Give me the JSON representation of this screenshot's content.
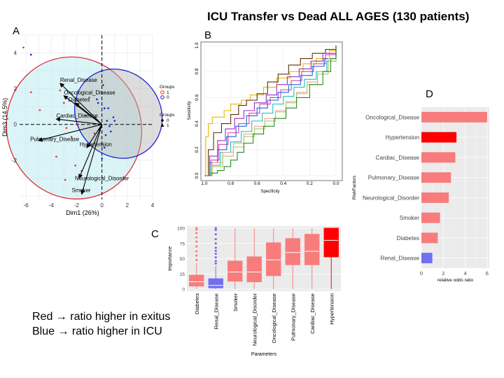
{
  "title": "ICU Transfer vs Dead ALL AGES (130 patients)",
  "panel_labels": {
    "a": "A",
    "b": "B",
    "c": "C",
    "d": "D"
  },
  "notes": [
    "Red → ratio higher in exitus",
    "Blue → ratio higher in ICU"
  ],
  "colors": {
    "red": "#ff0000",
    "light_red": "#f87c7c",
    "blue": "#7070f0",
    "dark_blue": "#2020d0"
  },
  "chart_data": [
    {
      "type": "scatter",
      "panel": "A",
      "xlabel": "Dim1 (26%)",
      "ylabel": "Dim3 (14.5%)",
      "xlim": [
        -6.5,
        4
      ],
      "ylim": [
        -4.2,
        5
      ],
      "xticks": [
        "-6",
        "-4",
        "-2",
        "0",
        "2",
        "4"
      ],
      "yticks": [
        "-2",
        "0",
        "2",
        "4"
      ],
      "grid": true,
      "legend": {
        "position": "right",
        "sections": [
          {
            "title": "Groups",
            "items": [
              "1",
              "0"
            ]
          },
          {
            "title": "Groups",
            "items": [
              "0",
              "1"
            ]
          }
        ]
      },
      "variables": [
        {
          "name": "Renal_Disease",
          "x": -3.3,
          "y": 2.3
        },
        {
          "name": "Oncological_Disease",
          "x": -3.0,
          "y": 1.6
        },
        {
          "name": "Diabetes",
          "x": -2.1,
          "y": 1.2
        },
        {
          "name": "Cardiac_Disease",
          "x": -3.6,
          "y": 0.3
        },
        {
          "name": "Hypertension",
          "x": -1.2,
          "y": -1.3
        },
        {
          "name": "Pulmonary_Disease",
          "x": -5.0,
          "y": -0.9
        },
        {
          "name": "Neurological_Disorder",
          "x": -1.8,
          "y": -3.0
        },
        {
          "name": "Smoker",
          "x": -1.6,
          "y": -3.9
        }
      ],
      "ellipses": [
        {
          "group": "1",
          "cx": -2.2,
          "cy": -0.2,
          "rx": 5.3,
          "ry": 4.0,
          "rotate": -20
        },
        {
          "group": "0",
          "cx": 1.3,
          "cy": 0.6,
          "rx": 3.3,
          "ry": 2.6,
          "rotate": -40
        }
      ],
      "points_group1": [
        [
          -6.2,
          4.3
        ],
        [
          -5.6,
          1.8
        ],
        [
          -4.9,
          0.8
        ],
        [
          -3.3,
          1.9
        ],
        [
          -3.0,
          1.2
        ],
        [
          -2.8,
          -0.2
        ],
        [
          -2.4,
          -0.7
        ],
        [
          -2.1,
          -2.3
        ],
        [
          -1.6,
          -2.6
        ],
        [
          -2.9,
          -3.1
        ],
        [
          -1.3,
          0.5
        ],
        [
          -0.8,
          -1.2
        ],
        [
          -0.5,
          0.4
        ],
        [
          -1.0,
          1.5
        ],
        [
          -3.6,
          -1.8
        ],
        [
          -2.0,
          0.0
        ],
        [
          -0.6,
          -0.5
        ],
        [
          -1.8,
          1.0
        ]
      ],
      "points_group0": [
        [
          -5.6,
          3.9
        ],
        [
          -0.4,
          1.4
        ],
        [
          0.2,
          0.9
        ],
        [
          0.4,
          0.2
        ],
        [
          0.6,
          -0.1
        ],
        [
          0.3,
          -0.6
        ],
        [
          0.9,
          0.4
        ],
        [
          0.1,
          2.2
        ],
        [
          0.2,
          -1.3
        ],
        [
          0.5,
          0.9
        ],
        [
          -0.2,
          -0.3
        ],
        [
          0.7,
          -0.4
        ],
        [
          -0.3,
          1.2
        ],
        [
          1.0,
          0.2
        ],
        [
          0.0,
          -1.9
        ]
      ]
    },
    {
      "type": "line",
      "panel": "B",
      "xlabel": "Specificity",
      "ylabel": "Sensitivity",
      "xlim": [
        1.0,
        0.0
      ],
      "ylim": [
        0.0,
        1.0
      ],
      "xticks": [
        "1.0",
        "0.8",
        "0.6",
        "0.4",
        "0.2",
        "0.0"
      ],
      "yticks": [
        "0.0",
        "0.2",
        "0.4",
        "0.6",
        "0.8",
        "1.0"
      ],
      "grid": true,
      "series": [
        {
          "color": "#e8b800",
          "points": [
            [
              1.0,
              0.0
            ],
            [
              0.99,
              0.3
            ],
            [
              0.97,
              0.4
            ],
            [
              0.94,
              0.45
            ],
            [
              0.9,
              0.45
            ],
            [
              0.85,
              0.5
            ],
            [
              0.8,
              0.55
            ],
            [
              0.72,
              0.58
            ],
            [
              0.65,
              0.62
            ],
            [
              0.55,
              0.68
            ],
            [
              0.45,
              0.75
            ],
            [
              0.35,
              0.8
            ],
            [
              0.25,
              0.86
            ],
            [
              0.15,
              0.9
            ],
            [
              0.05,
              0.96
            ],
            [
              0.0,
              1.0
            ]
          ]
        },
        {
          "color": "#5a3010",
          "points": [
            [
              1.0,
              0.0
            ],
            [
              0.97,
              0.2
            ],
            [
              0.93,
              0.33
            ],
            [
              0.87,
              0.4
            ],
            [
              0.8,
              0.47
            ],
            [
              0.74,
              0.54
            ],
            [
              0.68,
              0.58
            ],
            [
              0.6,
              0.63
            ],
            [
              0.52,
              0.72
            ],
            [
              0.44,
              0.78
            ],
            [
              0.36,
              0.85
            ],
            [
              0.27,
              0.9
            ],
            [
              0.18,
              0.94
            ],
            [
              0.08,
              0.97
            ],
            [
              0.0,
              1.0
            ]
          ]
        },
        {
          "color": "#9a30c0",
          "points": [
            [
              1.0,
              0.0
            ],
            [
              0.96,
              0.15
            ],
            [
              0.9,
              0.27
            ],
            [
              0.84,
              0.36
            ],
            [
              0.77,
              0.44
            ],
            [
              0.7,
              0.5
            ],
            [
              0.62,
              0.56
            ],
            [
              0.53,
              0.62
            ],
            [
              0.45,
              0.7
            ],
            [
              0.37,
              0.76
            ],
            [
              0.28,
              0.82
            ],
            [
              0.19,
              0.88
            ],
            [
              0.1,
              0.94
            ],
            [
              0.0,
              1.0
            ]
          ]
        },
        {
          "color": "#e040a0",
          "points": [
            [
              1.0,
              0.0
            ],
            [
              0.95,
              0.12
            ],
            [
              0.89,
              0.24
            ],
            [
              0.82,
              0.33
            ],
            [
              0.74,
              0.4
            ],
            [
              0.66,
              0.48
            ],
            [
              0.58,
              0.55
            ],
            [
              0.5,
              0.6
            ],
            [
              0.42,
              0.66
            ],
            [
              0.34,
              0.73
            ],
            [
              0.26,
              0.8
            ],
            [
              0.17,
              0.86
            ],
            [
              0.08,
              0.93
            ],
            [
              0.0,
              1.0
            ]
          ]
        },
        {
          "color": "#2060e0",
          "points": [
            [
              1.0,
              0.0
            ],
            [
              0.96,
              0.1
            ],
            [
              0.9,
              0.2
            ],
            [
              0.83,
              0.3
            ],
            [
              0.76,
              0.38
            ],
            [
              0.68,
              0.46
            ],
            [
              0.6,
              0.52
            ],
            [
              0.52,
              0.58
            ],
            [
              0.44,
              0.64
            ],
            [
              0.36,
              0.7
            ],
            [
              0.27,
              0.77
            ],
            [
              0.18,
              0.84
            ],
            [
              0.09,
              0.9
            ],
            [
              0.0,
              1.0
            ]
          ]
        },
        {
          "color": "#20c0c0",
          "points": [
            [
              1.0,
              0.0
            ],
            [
              0.95,
              0.08
            ],
            [
              0.88,
              0.18
            ],
            [
              0.8,
              0.26
            ],
            [
              0.72,
              0.34
            ],
            [
              0.64,
              0.42
            ],
            [
              0.56,
              0.48
            ],
            [
              0.48,
              0.55
            ],
            [
              0.4,
              0.61
            ],
            [
              0.32,
              0.68
            ],
            [
              0.24,
              0.74
            ],
            [
              0.15,
              0.8
            ],
            [
              0.07,
              0.88
            ],
            [
              0.0,
              1.0
            ]
          ]
        },
        {
          "color": "#f0a0a0",
          "points": [
            [
              1.0,
              0.0
            ],
            [
              0.94,
              0.1
            ],
            [
              0.86,
              0.18
            ],
            [
              0.78,
              0.25
            ],
            [
              0.7,
              0.32
            ],
            [
              0.62,
              0.38
            ],
            [
              0.54,
              0.44
            ],
            [
              0.46,
              0.5
            ],
            [
              0.38,
              0.57
            ],
            [
              0.3,
              0.64
            ],
            [
              0.22,
              0.72
            ],
            [
              0.14,
              0.8
            ],
            [
              0.06,
              0.9
            ],
            [
              0.0,
              1.0
            ]
          ]
        },
        {
          "color": "#a0d060",
          "points": [
            [
              1.0,
              0.0
            ],
            [
              0.94,
              0.07
            ],
            [
              0.86,
              0.15
            ],
            [
              0.78,
              0.22
            ],
            [
              0.7,
              0.3
            ],
            [
              0.62,
              0.36
            ],
            [
              0.54,
              0.42
            ],
            [
              0.46,
              0.49
            ],
            [
              0.38,
              0.56
            ],
            [
              0.3,
              0.63
            ],
            [
              0.22,
              0.7
            ],
            [
              0.14,
              0.78
            ],
            [
              0.06,
              0.88
            ],
            [
              0.0,
              1.0
            ]
          ]
        },
        {
          "color": "#2a8a20",
          "points": [
            [
              1.0,
              0.0
            ],
            [
              0.95,
              0.02
            ],
            [
              0.9,
              0.04
            ],
            [
              0.85,
              0.07
            ],
            [
              0.8,
              0.12
            ],
            [
              0.75,
              0.18
            ],
            [
              0.7,
              0.25
            ],
            [
              0.63,
              0.32
            ],
            [
              0.55,
              0.38
            ],
            [
              0.47,
              0.44
            ],
            [
              0.38,
              0.52
            ],
            [
              0.3,
              0.6
            ],
            [
              0.2,
              0.7
            ],
            [
              0.1,
              0.8
            ],
            [
              0.04,
              0.9
            ],
            [
              0.0,
              1.0
            ]
          ]
        }
      ]
    },
    {
      "type": "box",
      "panel": "C",
      "xlabel": "Parameters",
      "ylabel": "Importance",
      "ylim": [
        0,
        100
      ],
      "yticks": [
        "0",
        "25",
        "50",
        "75",
        "100"
      ],
      "grid": true,
      "categories": [
        "Diabetes",
        "Renal_Disease",
        "Smoker",
        "Neurological_Disorder",
        "Oncological_Disease",
        "Pulmonary_Disease",
        "Cardiac_Disease",
        "Hypertension"
      ],
      "boxes": [
        {
          "name": "Diabetes",
          "min": 0,
          "q1": 5,
          "median": 12,
          "q3": 23,
          "max": 43,
          "color": "light_red",
          "outliers": [
            48,
            55,
            62,
            70,
            78,
            85,
            92,
            98,
            100
          ]
        },
        {
          "name": "Renal_Disease",
          "min": 0,
          "q1": 2,
          "median": 6,
          "q3": 17,
          "max": 38,
          "color": "blue",
          "outliers": [
            42,
            46,
            52,
            58,
            63,
            68,
            75,
            82,
            90,
            97,
            100
          ]
        },
        {
          "name": "Smoker",
          "min": 0,
          "q1": 13,
          "median": 28,
          "q3": 46,
          "max": 100,
          "color": "light_red",
          "outliers": []
        },
        {
          "name": "Neurological_Disorder",
          "min": 0,
          "q1": 12,
          "median": 28,
          "q3": 53,
          "max": 100,
          "color": "light_red",
          "outliers": []
        },
        {
          "name": "Oncological_Disease",
          "min": 0,
          "q1": 22,
          "median": 48,
          "q3": 76,
          "max": 100,
          "color": "light_red",
          "outliers": []
        },
        {
          "name": "Pulmonary_Disease",
          "min": 0,
          "q1": 40,
          "median": 60,
          "q3": 83,
          "max": 100,
          "color": "light_red",
          "outliers": []
        },
        {
          "name": "Cardiac_Disease",
          "min": 0,
          "q1": 40,
          "median": 62,
          "q3": 90,
          "max": 100,
          "color": "light_red",
          "outliers": []
        },
        {
          "name": "Hypertension",
          "min": 0,
          "q1": 53,
          "median": 80,
          "q3": 100,
          "max": 100,
          "color": "red",
          "outliers": []
        }
      ]
    },
    {
      "type": "bar",
      "panel": "D",
      "orientation": "horizontal",
      "ylabel": "RiskFactors",
      "xlabel": "relative odds ratio",
      "xlim": [
        0,
        6.2
      ],
      "xticks": [
        "0",
        "2",
        "4",
        "6"
      ],
      "grid": true,
      "categories": [
        "Oncological_Disease",
        "Hypertension",
        "Cardiac_Disease",
        "Pulmonary_Disease",
        "Neurological_Disorder",
        "Smoker",
        "Diabetes",
        "Renal_Disease"
      ],
      "values": [
        6.0,
        3.2,
        3.1,
        2.7,
        2.5,
        1.7,
        1.5,
        1.0
      ],
      "bar_colors": [
        "light_red",
        "red",
        "light_red",
        "light_red",
        "light_red",
        "light_red",
        "light_red",
        "blue"
      ]
    }
  ]
}
